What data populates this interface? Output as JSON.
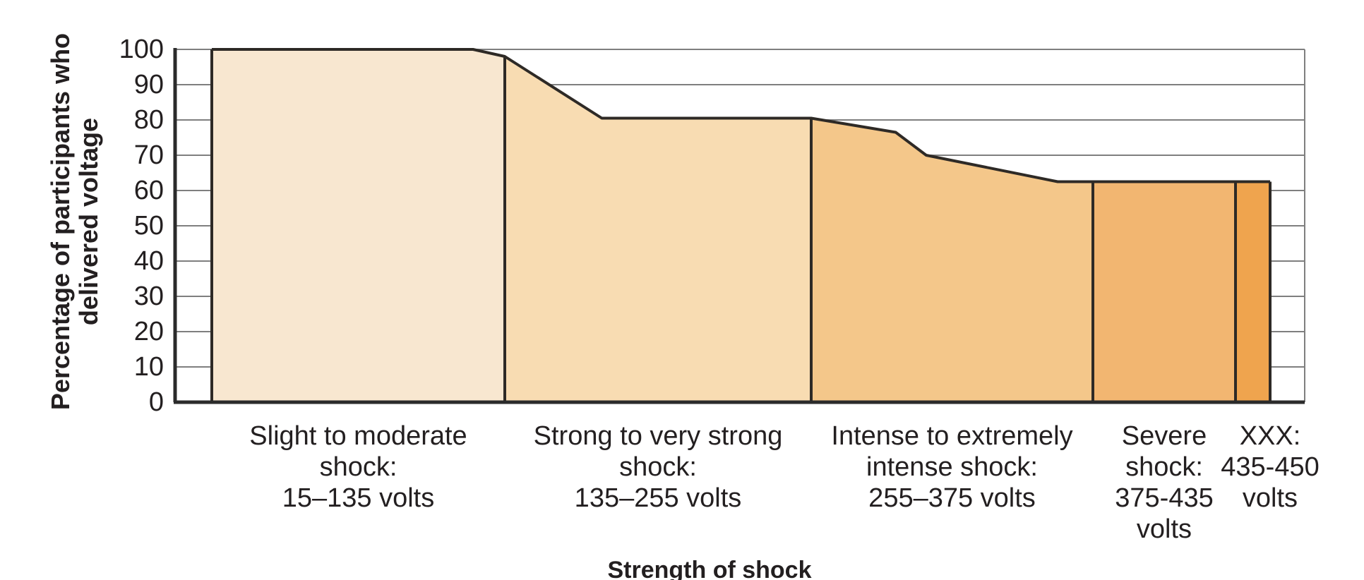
{
  "chart_data": {
    "type": "area",
    "title": "",
    "xlabel": "Strength of shock",
    "ylabel": "Percentage of participants who delivered voltage",
    "ylabel_lines": [
      "Percentage of participants who",
      "delivered voltage"
    ],
    "x_unit": "volts",
    "xlim": [
      15,
      450
    ],
    "ylim": [
      0,
      100
    ],
    "y_ticks": [
      0,
      10,
      20,
      30,
      40,
      50,
      60,
      70,
      80,
      90,
      100
    ],
    "grid": true,
    "legend": "none",
    "series": [
      {
        "name": "Percentage of participants who delivered voltage",
        "points": [
          {
            "volts": 15,
            "percent": 100
          },
          {
            "volts": 122,
            "percent": 100
          },
          {
            "volts": 135,
            "percent": 98
          },
          {
            "volts": 173,
            "percent": 80.5
          },
          {
            "volts": 255,
            "percent": 80.5
          },
          {
            "volts": 291,
            "percent": 76.5
          },
          {
            "volts": 304,
            "percent": 70
          },
          {
            "volts": 360,
            "percent": 62.5
          },
          {
            "volts": 450,
            "percent": 62.5
          }
        ]
      }
    ],
    "bands": [
      {
        "label": "Slight to moderate shock: 15–135 volts",
        "label_lines": [
          "Slight to moderate",
          "shock:",
          "15–135 volts"
        ],
        "from_volts": 15,
        "to_volts": 135,
        "fill": "#f8e7d0"
      },
      {
        "label": "Strong to very strong shock: 135–255 volts",
        "label_lines": [
          "Strong to very strong",
          "shock:",
          "135–255 volts"
        ],
        "from_volts": 135,
        "to_volts": 255,
        "fill": "#f8dcb2"
      },
      {
        "label": "Intense to extremely intense shock: 255–375 volts",
        "label_lines": [
          "Intense to extremely",
          "intense shock:",
          "255–375 volts"
        ],
        "from_volts": 255,
        "to_volts": 375,
        "fill": "#f4c78a"
      },
      {
        "label": "Severe shock: 375-435 volts",
        "label_lines": [
          "Severe",
          "shock:",
          "375-435",
          "volts"
        ],
        "from_volts": 375,
        "to_volts": 435,
        "fill": "#f2b671"
      },
      {
        "label": "XXX: 435-450 volts",
        "label_lines": [
          "XXX:",
          "435-450",
          "volts"
        ],
        "from_volts": 435,
        "to_volts": 450,
        "fill": "#efa44e"
      }
    ],
    "colors": {
      "outline": "#2e2a26",
      "axis": "#2b2b2b",
      "grid": "#7f7f7f",
      "text": "#231f20",
      "background": "#ffffff"
    }
  }
}
